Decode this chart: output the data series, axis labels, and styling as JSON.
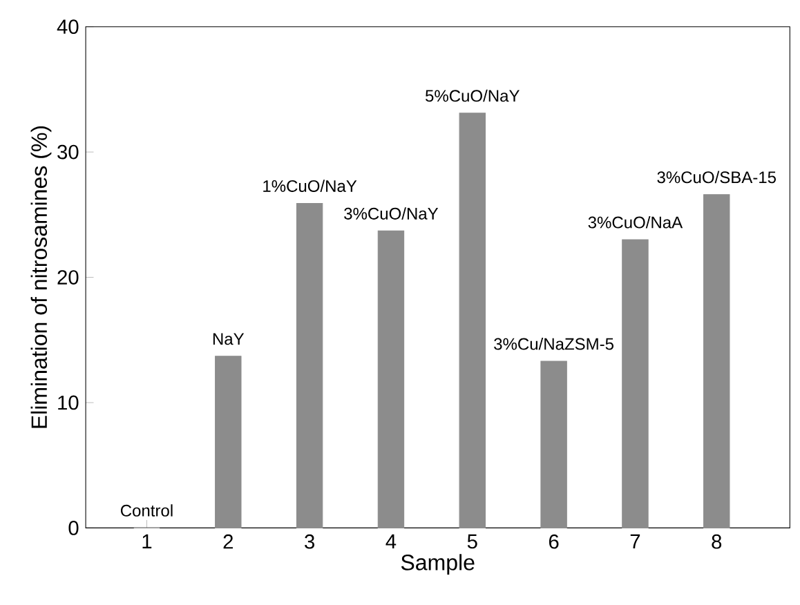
{
  "chart_data": {
    "type": "bar",
    "xlabel": "Sample",
    "ylabel": "Elimination of nitrosamines (%)",
    "categories": [
      "1",
      "2",
      "3",
      "4",
      "5",
      "6",
      "7",
      "8"
    ],
    "values": [
      0,
      13.7,
      25.9,
      23.7,
      33.1,
      13.3,
      23.0,
      26.6
    ],
    "color": "#8c8c8c",
    "ylim": [
      0,
      40
    ],
    "yticks": [
      0,
      10,
      20,
      30,
      40
    ],
    "annotations": [
      "Control",
      "NaY",
      "1%CuO/NaY",
      "3%CuO/NaY",
      "5%CuO/NaY",
      "3%Cu/NaZSM-5",
      "3%CuO/NaA",
      "3%CuO/SBA-15"
    ]
  }
}
